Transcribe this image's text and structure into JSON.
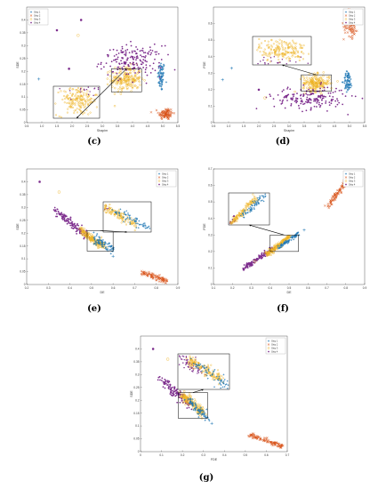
{
  "chart_data": [
    {
      "id": "c",
      "type": "scatter",
      "panel_label": "(c)",
      "xlabel": "Shapim",
      "ylabel": "SDE",
      "xlim": [
        0.5,
        5.5
      ],
      "ylim": [
        0,
        0.45
      ],
      "xticks": [
        "0.5",
        "1.0",
        "1.5",
        "2.0",
        "2.5",
        "3.0",
        "3.5",
        "4.0",
        "4.5",
        "5.0",
        "5.5"
      ],
      "yticks": [
        "0",
        "0.05",
        "0.1",
        "0.15",
        "0.2",
        "0.25",
        "0.3",
        "0.35",
        "0.4"
      ],
      "legend": [
        "Ship 1",
        "Ship 2",
        "Ship 3",
        "Ship 4"
      ],
      "clusters": [
        {
          "series": 0,
          "cx": 4.95,
          "cy": 0.18,
          "sx": 0.06,
          "sy": 0.03,
          "n": 70
        },
        {
          "series": 1,
          "cx": 5.1,
          "cy": 0.035,
          "sx": 0.12,
          "sy": 0.012,
          "n": 90
        },
        {
          "series": 2,
          "cx": 3.8,
          "cy": 0.17,
          "sx": 0.25,
          "sy": 0.025,
          "n": 180
        },
        {
          "series": 3,
          "cx": 4.0,
          "cy": 0.24,
          "sx": 0.5,
          "sy": 0.03,
          "n": 180
        }
      ],
      "outliers": [
        {
          "series": 0,
          "x": 0.9,
          "y": 0.17
        },
        {
          "series": 3,
          "x": 1.5,
          "y": 0.36
        },
        {
          "series": 3,
          "x": 2.3,
          "y": 0.4
        },
        {
          "series": 2,
          "x": 2.2,
          "y": 0.34
        },
        {
          "series": 3,
          "x": 1.9,
          "y": 0.21
        },
        {
          "series": 2,
          "x": 2.7,
          "y": 0.13
        }
      ],
      "zoom": {
        "x": [
          3.3,
          4.3
        ],
        "y": [
          0.12,
          0.21
        ]
      }
    },
    {
      "id": "d",
      "type": "scatter",
      "panel_label": "(d)",
      "xlabel": "Shapim",
      "ylabel": "FDE",
      "xlim": [
        0.5,
        5.5
      ],
      "ylim": [
        0,
        0.7
      ],
      "xticks": [
        "0.5",
        "1.0",
        "1.5",
        "2.0",
        "2.5",
        "3.0",
        "3.5",
        "4.0",
        "4.5",
        "5.0",
        "5.5"
      ],
      "yticks": [
        "0",
        "0.1",
        "0.2",
        "0.3",
        "0.4",
        "0.5",
        "0.6"
      ],
      "legend": [
        "Ship 1",
        "Ship 2",
        "Ship 3",
        "Ship 4"
      ],
      "clusters": [
        {
          "series": 0,
          "cx": 4.95,
          "cy": 0.25,
          "sx": 0.07,
          "sy": 0.03,
          "n": 70
        },
        {
          "series": 1,
          "cx": 5.05,
          "cy": 0.6,
          "sx": 0.12,
          "sy": 0.04,
          "n": 90
        },
        {
          "series": 2,
          "cx": 3.9,
          "cy": 0.24,
          "sx": 0.22,
          "sy": 0.025,
          "n": 180
        },
        {
          "series": 3,
          "cx": 3.7,
          "cy": 0.15,
          "sx": 0.6,
          "sy": 0.035,
          "n": 180
        }
      ],
      "outliers": [
        {
          "series": 0,
          "x": 0.8,
          "y": 0.26
        },
        {
          "series": 0,
          "x": 1.1,
          "y": 0.33
        },
        {
          "series": 2,
          "x": 2.2,
          "y": 0.15
        },
        {
          "series": 3,
          "x": 2.0,
          "y": 0.2
        }
      ],
      "zoom": {
        "x": [
          3.4,
          4.4
        ],
        "y": [
          0.19,
          0.29
        ]
      }
    },
    {
      "id": "e",
      "type": "scatter",
      "panel_label": "(e)",
      "xlabel": "DE",
      "ylabel": "SDE",
      "xlim": [
        0.2,
        0.9
      ],
      "ylim": [
        0,
        0.45
      ],
      "xticks": [
        "0.2",
        "0.3",
        "0.4",
        "0.5",
        "0.6",
        "0.7",
        "0.8",
        "0.9"
      ],
      "yticks": [
        "0",
        "0.05",
        "0.1",
        "0.15",
        "0.2",
        "0.25",
        "0.3",
        "0.35",
        "0.4"
      ],
      "legend": [
        "Ship 1",
        "Ship 2",
        "Ship 3",
        "Ship 4"
      ],
      "line_clusters": [
        {
          "series": 3,
          "x0": 0.33,
          "y0": 0.29,
          "x1": 0.48,
          "y1": 0.19,
          "spread": 0.008,
          "n": 120
        },
        {
          "series": 2,
          "x0": 0.45,
          "y0": 0.21,
          "x1": 0.56,
          "y1": 0.145,
          "spread": 0.007,
          "n": 150
        },
        {
          "series": 0,
          "x0": 0.5,
          "y0": 0.19,
          "x1": 0.6,
          "y1": 0.13,
          "spread": 0.008,
          "n": 70
        },
        {
          "series": 1,
          "x0": 0.72,
          "y0": 0.05,
          "x1": 0.85,
          "y1": 0.015,
          "spread": 0.005,
          "n": 90
        }
      ],
      "outliers": [
        {
          "series": 3,
          "x": 0.26,
          "y": 0.4
        },
        {
          "series": 2,
          "x": 0.35,
          "y": 0.36
        },
        {
          "series": 0,
          "x": 0.6,
          "y": 0.11
        }
      ],
      "zoom": {
        "x": [
          0.48,
          0.6
        ],
        "y": [
          0.13,
          0.21
        ]
      }
    },
    {
      "id": "f",
      "type": "scatter",
      "panel_label": "(f)",
      "xlabel": "DE",
      "ylabel": "FDE",
      "xlim": [
        0.1,
        0.9
      ],
      "ylim": [
        0,
        0.7
      ],
      "xticks": [
        "0.1",
        "0.2",
        "0.3",
        "0.4",
        "0.5",
        "0.6",
        "0.7",
        "0.8",
        "0.9"
      ],
      "yticks": [
        "0",
        "0.1",
        "0.2",
        "0.3",
        "0.4",
        "0.5",
        "0.6",
        "0.7"
      ],
      "legend": [
        "Ship 1",
        "Ship 2",
        "Ship 3",
        "Ship 4"
      ],
      "line_clusters": [
        {
          "series": 3,
          "x0": 0.26,
          "y0": 0.1,
          "x1": 0.42,
          "y1": 0.22,
          "spread": 0.006,
          "n": 120
        },
        {
          "series": 2,
          "x0": 0.38,
          "y0": 0.18,
          "x1": 0.5,
          "y1": 0.29,
          "spread": 0.006,
          "n": 150
        },
        {
          "series": 0,
          "x0": 0.44,
          "y0": 0.22,
          "x1": 0.55,
          "y1": 0.31,
          "spread": 0.006,
          "n": 70
        },
        {
          "series": 1,
          "x0": 0.7,
          "y0": 0.47,
          "x1": 0.84,
          "y1": 0.68,
          "spread": 0.006,
          "n": 100
        }
      ],
      "outliers": [
        {
          "series": 3,
          "x": 0.26,
          "y": 0.09
        },
        {
          "series": 2,
          "x": 0.32,
          "y": 0.14
        },
        {
          "series": 0,
          "x": 0.58,
          "y": 0.33
        }
      ],
      "zoom": {
        "x": [
          0.4,
          0.55
        ],
        "y": [
          0.2,
          0.3
        ]
      }
    },
    {
      "id": "g",
      "type": "scatter",
      "panel_label": "(g)",
      "xlabel": "FDE",
      "ylabel": "SDE",
      "xlim": [
        0,
        0.7
      ],
      "ylim": [
        0,
        0.45
      ],
      "xticks": [
        "0",
        "0.1",
        "0.2",
        "0.3",
        "0.4",
        "0.5",
        "0.6",
        "0.7"
      ],
      "yticks": [
        "0",
        "0.05",
        "0.1",
        "0.15",
        "0.2",
        "0.25",
        "0.3",
        "0.35",
        "0.4"
      ],
      "legend": [
        "Ship 1",
        "Ship 2",
        "Ship 3",
        "Ship 4"
      ],
      "line_clusters": [
        {
          "series": 3,
          "x0": 0.1,
          "y0": 0.28,
          "x1": 0.24,
          "y1": 0.18,
          "spread": 0.009,
          "n": 130
        },
        {
          "series": 2,
          "x0": 0.2,
          "y0": 0.22,
          "x1": 0.3,
          "y1": 0.15,
          "spread": 0.008,
          "n": 150
        },
        {
          "series": 0,
          "x0": 0.22,
          "y0": 0.21,
          "x1": 0.32,
          "y1": 0.13,
          "spread": 0.008,
          "n": 70
        },
        {
          "series": 1,
          "x0": 0.52,
          "y0": 0.065,
          "x1": 0.68,
          "y1": 0.02,
          "spread": 0.005,
          "n": 100
        }
      ],
      "outliers": [
        {
          "series": 3,
          "x": 0.06,
          "y": 0.4
        },
        {
          "series": 2,
          "x": 0.13,
          "y": 0.36
        },
        {
          "series": 0,
          "x": 0.34,
          "y": 0.11
        }
      ],
      "zoom": {
        "x": [
          0.18,
          0.32
        ],
        "y": [
          0.13,
          0.23
        ]
      }
    }
  ],
  "colors": {
    "ship1": "#1f77b4",
    "ship2": "#d95319",
    "ship3": "#edb120",
    "ship4": "#7e2f8e"
  },
  "markers": [
    "plus-marker",
    "cross-marker",
    "circle-marker",
    "star-marker"
  ]
}
